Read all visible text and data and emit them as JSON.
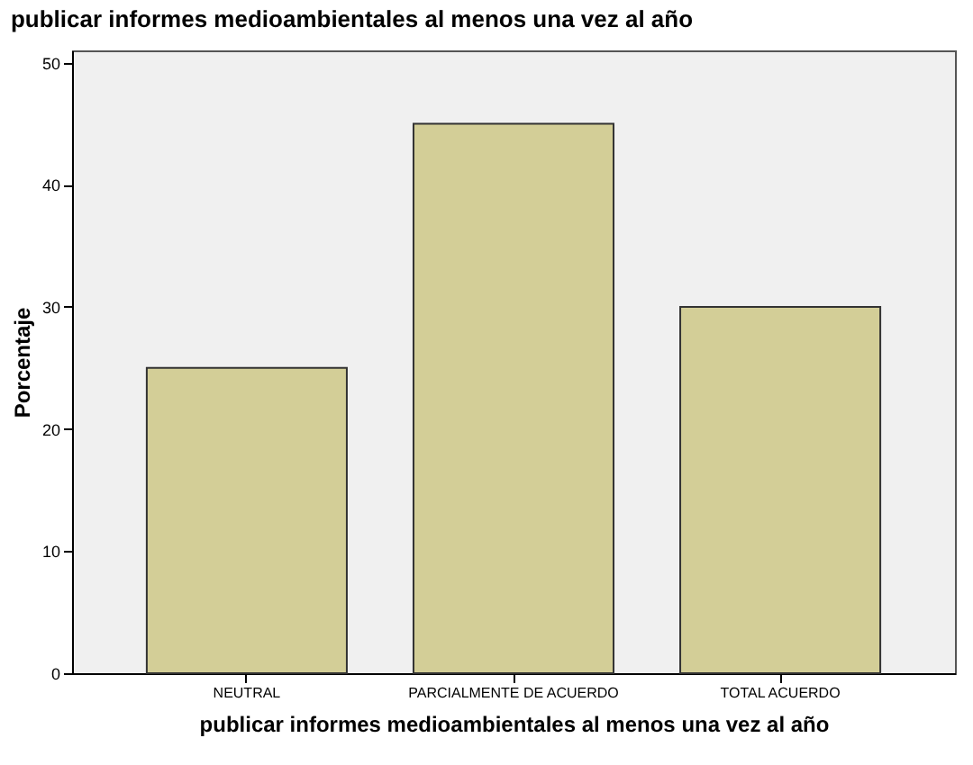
{
  "chart_data": {
    "type": "bar",
    "title": "publicar informes medioambientales al menos una vez al año",
    "xlabel": "publicar informes medioambientales al menos una vez al año",
    "ylabel": "Porcentaje",
    "categories": [
      "NEUTRAL",
      "PARCIALMENTE DE ACUERDO",
      "TOTAL ACUERDO"
    ],
    "values": [
      25,
      45,
      30
    ],
    "color": "#d3ce97",
    "ylim": [
      0,
      51
    ],
    "yticks": [
      0,
      10,
      20,
      30,
      40,
      50
    ],
    "grid": false
  }
}
